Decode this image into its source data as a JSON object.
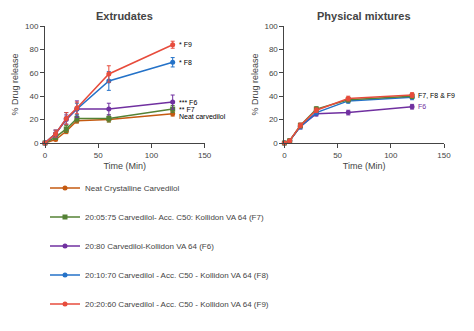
{
  "chart_data": [
    {
      "type": "line",
      "title": "Extrudates",
      "xlabel": "Time (Min)",
      "ylabel": "% Drug release",
      "xlim": [
        0,
        150
      ],
      "ylim": [
        0,
        100
      ],
      "xticks": [
        0,
        50,
        100,
        150
      ],
      "yticks": [
        0,
        20,
        40,
        60,
        80,
        100
      ],
      "grid": false,
      "legend": "bottom",
      "series": [
        {
          "name": "Neat Crystalline Carvedilol",
          "color": "#c55a11",
          "marker": "circle",
          "x": [
            0,
            10,
            20,
            30,
            60,
            120
          ],
          "values": [
            0,
            3,
            10,
            19,
            20,
            25
          ],
          "errors": [
            0,
            1,
            2,
            2,
            2,
            2
          ]
        },
        {
          "name": "20:05:75 Carvedilol- Acc. C50: Kollidon VA 64 (F7)",
          "color": "#548235",
          "marker": "square",
          "x": [
            0,
            10,
            20,
            30,
            60,
            120
          ],
          "values": [
            0,
            5,
            12,
            21,
            21,
            29
          ],
          "errors": [
            0,
            2,
            3,
            3,
            3,
            3
          ]
        },
        {
          "name": "20:80 Carvedilol-Kollidon VA 64 (F6)",
          "color": "#7030a0",
          "marker": "circle",
          "x": [
            0,
            10,
            20,
            30,
            60,
            120
          ],
          "values": [
            0,
            8,
            20,
            29,
            29,
            35
          ],
          "errors": [
            0,
            3,
            4,
            7,
            5,
            6
          ]
        },
        {
          "name": "20:10:70 Carvedilol - Acc. C50 - Kollidon VA 64 (F8)",
          "color": "#2472c8",
          "marker": "circle",
          "x": [
            0,
            10,
            20,
            30,
            60,
            120
          ],
          "values": [
            0,
            8,
            21,
            29,
            53,
            69
          ],
          "errors": [
            0,
            3,
            5,
            5,
            8,
            4
          ]
        },
        {
          "name": "20:20:60 Carvedilol - Acc. C50 - Kollidon VA 64 (F9)",
          "color": "#e74c3c",
          "marker": "circle",
          "x": [
            0,
            10,
            20,
            30,
            60,
            120
          ],
          "values": [
            0,
            8,
            21,
            30,
            59,
            84
          ],
          "errors": [
            0,
            3,
            5,
            5,
            7,
            3
          ]
        }
      ],
      "annotations": [
        {
          "text": "* F9",
          "x": 120,
          "y": 84,
          "color": "#000000"
        },
        {
          "text": "* F8",
          "x": 120,
          "y": 69,
          "color": "#000000"
        },
        {
          "text": "*** F6",
          "x": 120,
          "y": 35,
          "color": "#000000"
        },
        {
          "text": "** F7",
          "x": 120,
          "y": 29,
          "color": "#000000"
        },
        {
          "text": "Neat carvedilol",
          "x": 120,
          "y": 25,
          "color": "#000000"
        }
      ]
    },
    {
      "type": "line",
      "title": "Physical mixtures",
      "xlabel": "Time (Min)",
      "ylabel": "% Drug release",
      "xlim": [
        0,
        150
      ],
      "ylim": [
        0,
        100
      ],
      "xticks": [
        0,
        50,
        100,
        150
      ],
      "yticks": [
        0,
        20,
        40,
        60,
        80,
        100
      ],
      "grid": false,
      "series": [
        {
          "name": "20:80 Carvedilol-Kollidon VA 64 (F6)",
          "color": "#7030a0",
          "marker": "circle",
          "x": [
            0,
            5,
            15,
            30,
            60,
            120
          ],
          "values": [
            0,
            2,
            14,
            25,
            26,
            31
          ],
          "errors": [
            0,
            1,
            2,
            2,
            2,
            2
          ]
        },
        {
          "name": "20:10:70 Carvedilol - Acc. C50 - Kollidon VA 64 (F8)",
          "color": "#2472c8",
          "marker": "circle",
          "x": [
            0,
            5,
            15,
            30,
            60,
            120
          ],
          "values": [
            0,
            2,
            14,
            26,
            36,
            39
          ],
          "errors": [
            0,
            1,
            2,
            2,
            2,
            2
          ]
        },
        {
          "name": "20:05:75 Carvedilol- Acc. C50: Kollidon VA 64 (F7)",
          "color": "#548235",
          "marker": "square",
          "x": [
            0,
            5,
            15,
            30,
            60,
            120
          ],
          "values": [
            0,
            2,
            15,
            29,
            37,
            40
          ],
          "errors": [
            0,
            1,
            2,
            2,
            2,
            2
          ]
        },
        {
          "name": "20:20:60 Carvedilol - Acc. C50 - Kollidon VA 64 (F9)",
          "color": "#e74c3c",
          "marker": "circle",
          "x": [
            0,
            5,
            15,
            30,
            60,
            120
          ],
          "values": [
            0,
            2,
            15,
            28,
            38,
            41
          ],
          "errors": [
            0,
            1,
            2,
            2,
            2,
            2
          ]
        }
      ],
      "annotations": [
        {
          "text": "F7, F8 & F9",
          "x": 120,
          "y": 41,
          "color": "#000000"
        },
        {
          "text": "F6",
          "x": 120,
          "y": 31,
          "color": "#7030a0"
        }
      ]
    }
  ]
}
